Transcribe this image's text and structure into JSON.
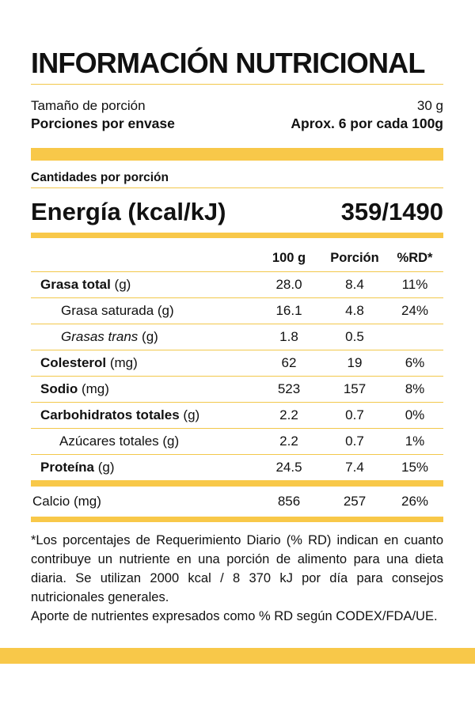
{
  "title": "INFORMACIÓN NUTRICIONAL",
  "serving": {
    "size_label": "Tamaño de porción",
    "size_value": "30 g",
    "per_container_label": "Porciones por envase",
    "per_container_value": "Aprox. 6 por cada 100g"
  },
  "amounts_label": "Cantidades por porción",
  "energy": {
    "label": "Energía (kcal/kJ)",
    "value": "359/1490"
  },
  "table": {
    "headers": [
      "",
      "100 g",
      "Porción",
      "%RD*"
    ],
    "rows": [
      {
        "name": "Grasa total",
        "unit": " (g)",
        "per100": "28.0",
        "portion": "8.4",
        "rd": "11%"
      },
      {
        "name": "Grasa saturada (g)",
        "unit": "",
        "per100": "16.1",
        "portion": "4.8",
        "rd": "24%"
      },
      {
        "name": "Grasas trans",
        "unit": " (g)",
        "per100": "1.8",
        "portion": "0.5",
        "rd": ""
      },
      {
        "name": "Colesterol",
        "unit": " (mg)",
        "per100": "62",
        "portion": "19",
        "rd": "6%"
      },
      {
        "name": "Sodio",
        "unit": " (mg)",
        "per100": "523",
        "portion": "157",
        "rd": "8%"
      },
      {
        "name": "Carbohidratos totales",
        "unit": " (g)",
        "per100": "2.2",
        "portion": "0.7",
        "rd": "0%"
      },
      {
        "name": "Azúcares totales (g)",
        "unit": "",
        "per100": "2.2",
        "portion": "0.7",
        "rd": "1%"
      },
      {
        "name": "Proteína",
        "unit": " (g)",
        "per100": "24.5",
        "portion": "7.4",
        "rd": "15%"
      },
      {
        "name": "Calcio (mg)",
        "unit": "",
        "per100": "856",
        "portion": "257",
        "rd": "26%"
      }
    ]
  },
  "footnote": {
    "p1": "*Los porcentajes de Requerimiento Diario (% RD) indican en cuanto contribuye un nutriente en una porción de alimento para una dieta diaria. Se utilizan 2000 kcal / 8 370 kJ por día para consejos nutricionales generales.",
    "p2": "Aporte de nutrientes expresados como % RD según CODEX/FDA/UE."
  },
  "colors": {
    "accent": "#f8c849",
    "rule": "#f2c84b",
    "text": "#111111"
  }
}
